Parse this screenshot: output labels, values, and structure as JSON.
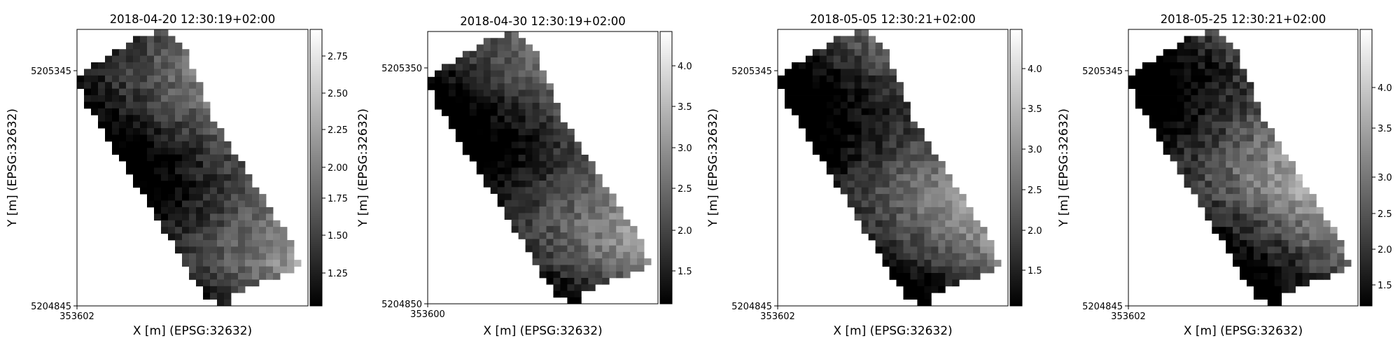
{
  "chart_data": [
    {
      "type": "heatmap",
      "title": "2018-04-20 12:30:19+02:00",
      "xlabel": "X [m] (EPSG:32632)",
      "ylabel": "Y [m] (EPSG:32632)",
      "x_ticks": [
        "353602"
      ],
      "y_ticks": [
        "5205345",
        "5204845"
      ],
      "colorbar_ticks": [
        "1.25",
        "1.50",
        "1.75",
        "2.00",
        "2.25",
        "2.50",
        "2.75"
      ],
      "colorbar_range": [
        1.05,
        2.98
      ],
      "colormap": "gray"
    },
    {
      "type": "heatmap",
      "title": "2018-04-30 12:30:19+02:00",
      "xlabel": "X [m] (EPSG:32632)",
      "ylabel": "Y [m] (EPSG:32632)",
      "x_ticks": [
        "353600"
      ],
      "y_ticks": [
        "5205350",
        "5204850"
      ],
      "colorbar_ticks": [
        "1.5",
        "2.0",
        "2.5",
        "3.0",
        "3.5",
        "4.0"
      ],
      "colorbar_range": [
        1.15,
        4.4
      ],
      "colormap": "gray"
    },
    {
      "type": "heatmap",
      "title": "2018-05-05 12:30:21+02:00",
      "xlabel": "X [m] (EPSG:32632)",
      "ylabel": "Y [m] (EPSG:32632)",
      "x_ticks": [
        "353602"
      ],
      "y_ticks": [
        "5205345",
        "5204845"
      ],
      "colorbar_ticks": [
        "1.5",
        "2.0",
        "2.5",
        "3.0",
        "3.5",
        "4.0"
      ],
      "colorbar_range": [
        1.05,
        4.45
      ],
      "colormap": "gray"
    },
    {
      "type": "heatmap",
      "title": "2018-05-25 12:30:21+02:00",
      "xlabel": "X [m] (EPSG:32632)",
      "ylabel": "Y [m] (EPSG:32632)",
      "x_ticks": [
        "353602"
      ],
      "y_ticks": [
        "5205345",
        "5204845"
      ],
      "colorbar_ticks": [
        "1.5",
        "2.0",
        "2.5",
        "3.0",
        "3.5",
        "4.0"
      ],
      "colorbar_range": [
        1.2,
        4.05
      ],
      "colormap": "gray"
    }
  ]
}
